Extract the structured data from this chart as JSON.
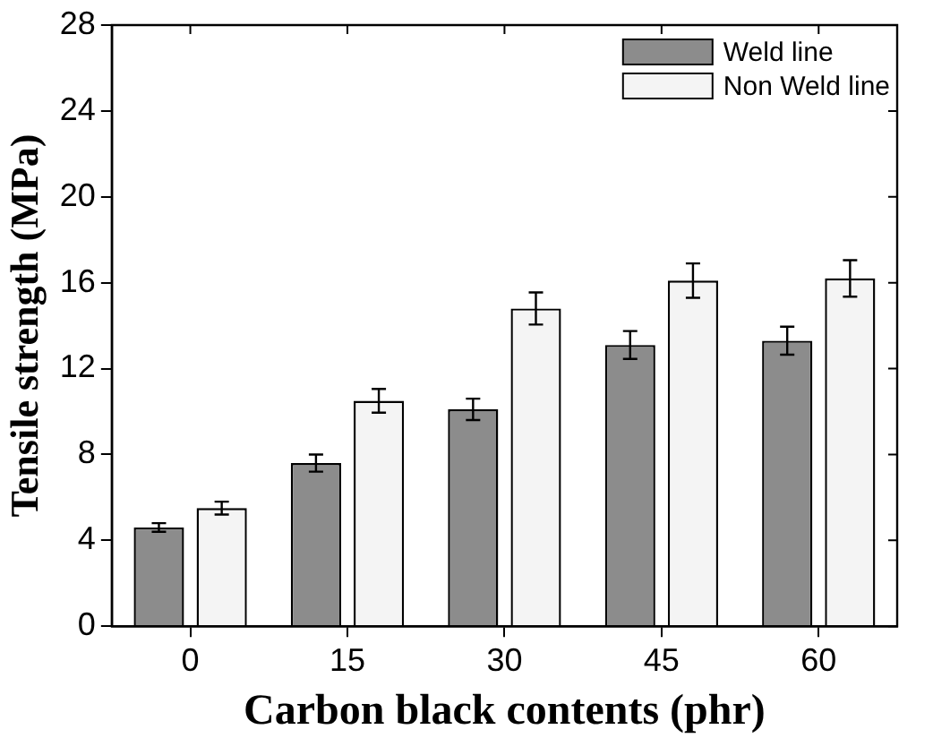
{
  "chart_data": {
    "type": "bar",
    "xlabel": "Carbon black contents (phr)",
    "ylabel": "Tensile strength (MPa)",
    "categories": [
      "0",
      "15",
      "30",
      "45",
      "60"
    ],
    "series": [
      {
        "name": "Weld line",
        "color": "#8c8c8c",
        "values": [
          4.6,
          7.6,
          10.1,
          13.1,
          13.3
        ],
        "errors": [
          0.2,
          0.4,
          0.5,
          0.65,
          0.65
        ]
      },
      {
        "name": "Non Weld line",
        "color": "#f4f4f4",
        "values": [
          5.5,
          10.5,
          14.8,
          16.1,
          16.2
        ],
        "errors": [
          0.3,
          0.55,
          0.75,
          0.8,
          0.85
        ]
      }
    ],
    "ylim": [
      0,
      28
    ],
    "yticks": [
      0,
      4,
      8,
      12,
      16,
      20,
      24,
      28
    ],
    "grid": false,
    "legend": "top right"
  }
}
